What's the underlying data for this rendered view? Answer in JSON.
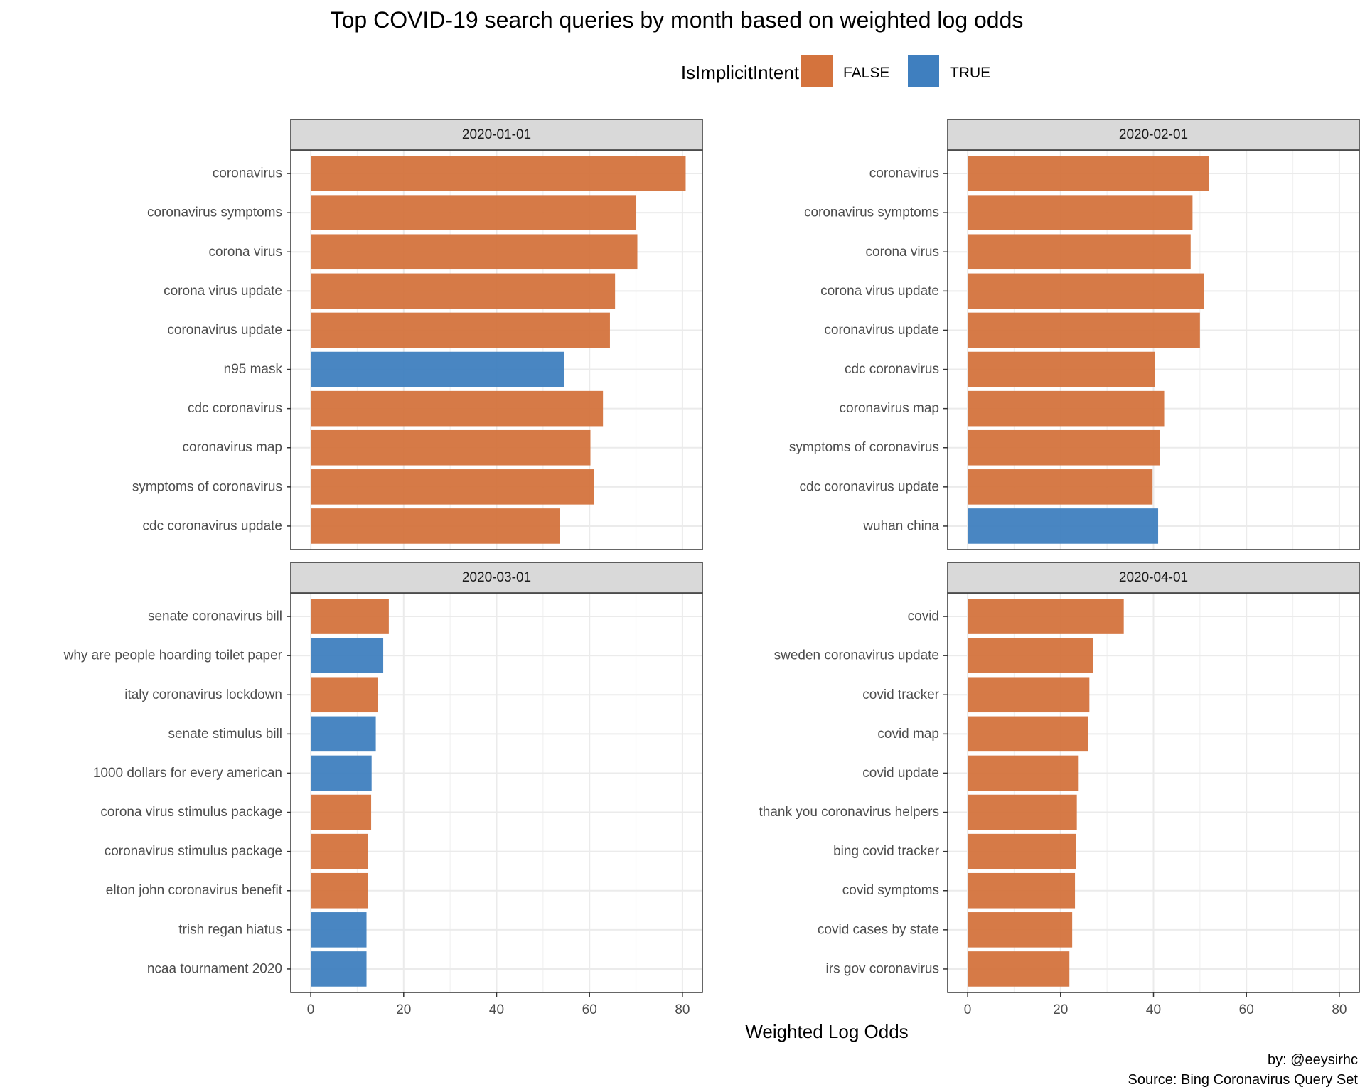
{
  "chart_data": {
    "type": "bar",
    "orientation": "horizontal",
    "title": "Top COVID-19 search queries by month based on weighted log odds",
    "xlabel": "Weighted Log Odds",
    "caption_lines": [
      "by: @eeysirhc",
      "Source: Bing Coronavirus Query Set"
    ],
    "legend": {
      "title": "IsImplicitIntent",
      "position": "top",
      "entries": [
        {
          "label": "FALSE",
          "color": "#D4733D"
        },
        {
          "label": "TRUE",
          "color": "#3F7FBF"
        }
      ]
    },
    "xlim": [
      -4.3,
      84.3
    ],
    "xticks": [
      "0",
      "20",
      "40",
      "60",
      "80"
    ],
    "xtick_values": [
      0,
      20,
      40,
      60,
      80
    ],
    "grid": true,
    "facets": [
      {
        "label": "2020-01-01",
        "bars": [
          {
            "query": "coronavirus",
            "value": 80.7,
            "implicit": "FALSE"
          },
          {
            "query": "coronavirus symptoms",
            "value": 70.0,
            "implicit": "FALSE"
          },
          {
            "query": "corona virus",
            "value": 70.3,
            "implicit": "FALSE"
          },
          {
            "query": "corona virus update",
            "value": 65.5,
            "implicit": "FALSE"
          },
          {
            "query": "coronavirus update",
            "value": 64.4,
            "implicit": "FALSE"
          },
          {
            "query": "n95 mask",
            "value": 54.5,
            "implicit": "TRUE"
          },
          {
            "query": "cdc coronavirus",
            "value": 62.9,
            "implicit": "FALSE"
          },
          {
            "query": "coronavirus map",
            "value": 60.2,
            "implicit": "FALSE"
          },
          {
            "query": "symptoms of coronavirus",
            "value": 60.9,
            "implicit": "FALSE"
          },
          {
            "query": "cdc coronavirus update",
            "value": 53.6,
            "implicit": "FALSE"
          }
        ]
      },
      {
        "label": "2020-02-01",
        "bars": [
          {
            "query": "coronavirus",
            "value": 52.0,
            "implicit": "FALSE"
          },
          {
            "query": "coronavirus symptoms",
            "value": 48.4,
            "implicit": "FALSE"
          },
          {
            "query": "corona virus",
            "value": 48.0,
            "implicit": "FALSE"
          },
          {
            "query": "corona virus update",
            "value": 50.9,
            "implicit": "FALSE"
          },
          {
            "query": "coronavirus update",
            "value": 50.0,
            "implicit": "FALSE"
          },
          {
            "query": "cdc coronavirus",
            "value": 40.3,
            "implicit": "FALSE"
          },
          {
            "query": "coronavirus map",
            "value": 42.3,
            "implicit": "FALSE"
          },
          {
            "query": "symptoms of coronavirus",
            "value": 41.3,
            "implicit": "FALSE"
          },
          {
            "query": "cdc coronavirus update",
            "value": 39.8,
            "implicit": "FALSE"
          },
          {
            "query": "wuhan china",
            "value": 41.0,
            "implicit": "TRUE"
          }
        ]
      },
      {
        "label": "2020-03-01",
        "bars": [
          {
            "query": "senate coronavirus bill",
            "value": 16.8,
            "implicit": "FALSE"
          },
          {
            "query": "why are people hoarding toilet paper",
            "value": 15.6,
            "implicit": "TRUE"
          },
          {
            "query": "italy coronavirus lockdown",
            "value": 14.4,
            "implicit": "FALSE"
          },
          {
            "query": "senate stimulus bill",
            "value": 14.0,
            "implicit": "TRUE"
          },
          {
            "query": "1000 dollars for every american",
            "value": 13.1,
            "implicit": "TRUE"
          },
          {
            "query": "corona virus stimulus package",
            "value": 13.0,
            "implicit": "FALSE"
          },
          {
            "query": "coronavirus stimulus package",
            "value": 12.3,
            "implicit": "FALSE"
          },
          {
            "query": "elton john coronavirus benefit",
            "value": 12.3,
            "implicit": "FALSE"
          },
          {
            "query": "trish regan hiatus",
            "value": 12.0,
            "implicit": "TRUE"
          },
          {
            "query": "ncaa tournament 2020",
            "value": 12.0,
            "implicit": "TRUE"
          }
        ]
      },
      {
        "label": "2020-04-01",
        "bars": [
          {
            "query": "covid",
            "value": 33.6,
            "implicit": "FALSE"
          },
          {
            "query": "sweden coronavirus update",
            "value": 27.0,
            "implicit": "FALSE"
          },
          {
            "query": "covid tracker",
            "value": 26.2,
            "implicit": "FALSE"
          },
          {
            "query": "covid map",
            "value": 25.9,
            "implicit": "FALSE"
          },
          {
            "query": "covid update",
            "value": 23.9,
            "implicit": "FALSE"
          },
          {
            "query": "thank you coronavirus helpers",
            "value": 23.5,
            "implicit": "FALSE"
          },
          {
            "query": "bing covid tracker",
            "value": 23.3,
            "implicit": "FALSE"
          },
          {
            "query": "covid symptoms",
            "value": 23.1,
            "implicit": "FALSE"
          },
          {
            "query": "covid cases by state",
            "value": 22.5,
            "implicit": "FALSE"
          },
          {
            "query": "irs gov coronavirus",
            "value": 21.9,
            "implicit": "FALSE"
          }
        ]
      }
    ]
  }
}
